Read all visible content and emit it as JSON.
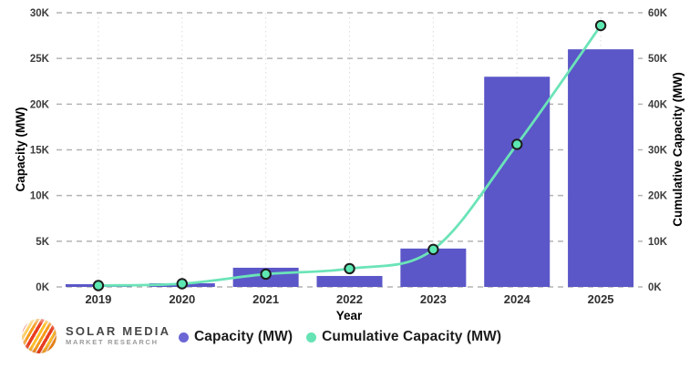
{
  "chart_data": {
    "type": "bar",
    "subtype": "bar+line combo, dual y-axis",
    "categories": [
      "2019",
      "2020",
      "2021",
      "2022",
      "2023",
      "2024",
      "2025"
    ],
    "series": [
      {
        "name": "Capacity (MW)",
        "type": "bar",
        "axis": "left",
        "values": [
          300,
          400,
          2100,
          1200,
          4200,
          23000,
          26000
        ]
      },
      {
        "name": "Cumulative Capacity (MW)",
        "type": "line",
        "axis": "right",
        "values": [
          300,
          700,
          2800,
          4000,
          8200,
          31200,
          57200
        ]
      }
    ],
    "xlabel": "Year",
    "left_axis": {
      "label": "Capacity (MW)",
      "min": 0,
      "max": 30000,
      "step": 5000,
      "tick_labels": [
        "0K",
        "5K",
        "10K",
        "15K",
        "20K",
        "25K",
        "30K"
      ]
    },
    "right_axis": {
      "label": "Cumulative Capacity (MW)",
      "min": 0,
      "max": 60000,
      "step": 10000,
      "tick_labels": [
        "0K",
        "10K",
        "20K",
        "30K",
        "40K",
        "50K",
        "60K"
      ]
    },
    "grid": "horizontal dashed + vertical dotted",
    "legend_position": "bottom-center"
  },
  "legend": {
    "items": [
      {
        "label": "Capacity (MW)",
        "color": "#6c67d4"
      },
      {
        "label": "Cumulative Capacity (MW)",
        "color": "#66e3b4"
      }
    ]
  },
  "branding": {
    "title": "SOLAR MEDIA",
    "subtitle": "MARKET RESEARCH"
  },
  "style": {
    "bar_color": "#5b57c8",
    "line_color": "#6be4b8",
    "marker_fill": "#5de8b2",
    "marker_stroke": "#1c1c1c",
    "hgrid_color": "#b3b3b3",
    "vgrid_color": "#dcdcdc",
    "tick_color": "#3d3d3d",
    "x_tick_color": "#2f2f2f",
    "axis_title_color": "#1f1f1f"
  }
}
